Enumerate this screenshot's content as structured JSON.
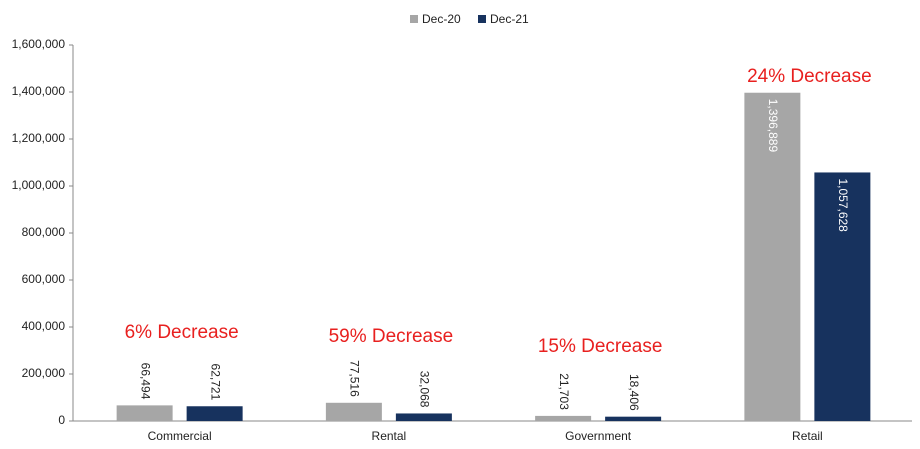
{
  "chart_data": {
    "type": "bar",
    "categories": [
      "Commercial",
      "Rental",
      "Government",
      "Retail"
    ],
    "series": [
      {
        "name": "Dec-20",
        "color": "#a6a6a6",
        "values": [
          66494,
          77516,
          21703,
          1396889
        ],
        "value_labels": [
          "66,494",
          "77,516",
          "21,703",
          "1,396,889"
        ]
      },
      {
        "name": "Dec-21",
        "color": "#17325e",
        "values": [
          62721,
          32068,
          18406,
          1057628
        ],
        "value_labels": [
          "62,721",
          "32,068",
          "18,406",
          "1,057,628"
        ]
      }
    ],
    "annotations": [
      "6% Decrease",
      "59% Decrease",
      "15% Decrease",
      "24% Decrease"
    ],
    "ylim": [
      0,
      1600000
    ],
    "yticks": [
      {
        "value": 0,
        "label": "0"
      },
      {
        "value": 200000,
        "label": "200,000"
      },
      {
        "value": 400000,
        "label": "400,000"
      },
      {
        "value": 600000,
        "label": "600,000"
      },
      {
        "value": 800000,
        "label": "800,000"
      },
      {
        "value": 1000000,
        "label": "1,000,000"
      },
      {
        "value": 1200000,
        "label": "1,200,000"
      },
      {
        "value": 1400000,
        "label": "1,400,000"
      },
      {
        "value": 1600000,
        "label": "1,600,000"
      }
    ],
    "grid": false
  }
}
